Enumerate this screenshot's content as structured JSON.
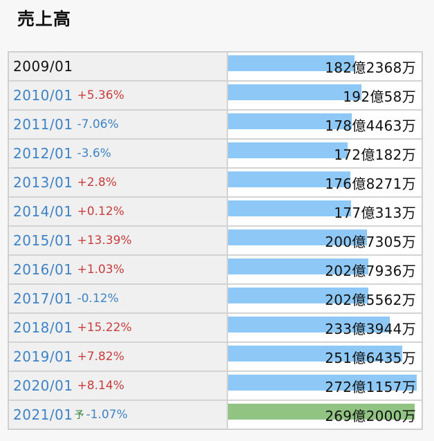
{
  "title": "売上高",
  "colors": {
    "bar": "#8ec8f6",
    "bar_forecast": "#91c483",
    "up": "#c83c3c",
    "down": "#3e83c6"
  },
  "chart_data": {
    "type": "bar",
    "title": "売上高",
    "unit": "億円",
    "categories": [
      "2009/01",
      "2010/01",
      "2011/01",
      "2012/01",
      "2013/01",
      "2014/01",
      "2015/01",
      "2016/01",
      "2017/01",
      "2018/01",
      "2019/01",
      "2020/01",
      "2021/01"
    ],
    "values": [
      182.2368,
      192.0058,
      178.4463,
      172.0182,
      176.8271,
      177.0313,
      200.7305,
      202.7936,
      202.5562,
      233.3944,
      251.6435,
      272.1157,
      269.2
    ],
    "value_labels": [
      "182億2368万",
      "192億58万",
      "178億4463万",
      "172億182万",
      "176億8271万",
      "177億313万",
      "200億7305万",
      "202億7936万",
      "202億5562万",
      "233億3944万",
      "251億6435万",
      "272億1157万",
      "269億2000万"
    ],
    "changes": [
      "",
      "+5.36%",
      "-7.06%",
      "-3.6%",
      "+2.8%",
      "+0.12%",
      "+13.39%",
      "+1.03%",
      "-0.12%",
      "+15.22%",
      "+7.82%",
      "+8.14%",
      "-1.07%"
    ],
    "forecast_flags": [
      false,
      false,
      false,
      false,
      false,
      false,
      false,
      false,
      false,
      false,
      false,
      false,
      true
    ],
    "forecast_label": "予",
    "xlim": [
      0,
      272.1157
    ]
  }
}
